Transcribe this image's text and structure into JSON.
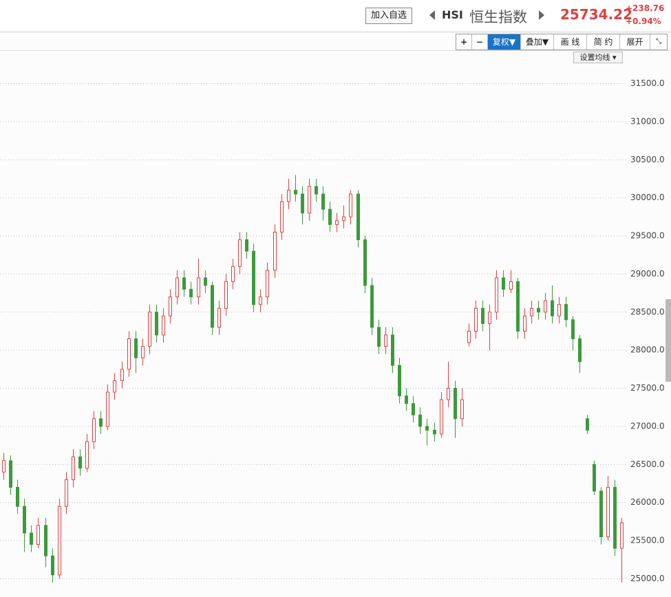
{
  "header": {
    "add_button": "加入自选",
    "symbol": "HSI",
    "name": "恒生指数",
    "price": "25734.22",
    "change": "+238.76",
    "change_pct": "+0.94%"
  },
  "toolbar": {
    "zoom_in": "+",
    "zoom_out": "−",
    "adjust": "复权▼",
    "overlay": "叠加▼",
    "draw": "画 线",
    "simple": "简 约",
    "expand": "展开",
    "ma_setting": "设置均线"
  },
  "chart_data": {
    "type": "candlestick",
    "up_color": "#e04040",
    "down_color": "#3c9a3c",
    "grid": true,
    "ylim": [
      24760,
      31920
    ],
    "yticks": [
      {
        "value": 25000,
        "label": "25000.0"
      },
      {
        "value": 25500,
        "label": "25500.0"
      },
      {
        "value": 26000,
        "label": "26000.0"
      },
      {
        "value": 26500,
        "label": "26500.0"
      },
      {
        "value": 27000,
        "label": "27000.0"
      },
      {
        "value": 27500,
        "label": "27500.0"
      },
      {
        "value": 28000,
        "label": "28000.0"
      },
      {
        "value": 28500,
        "label": "28500.0"
      },
      {
        "value": 29000,
        "label": "29000.0"
      },
      {
        "value": 29500,
        "label": "29500.0"
      },
      {
        "value": 30000,
        "label": "30000.0"
      },
      {
        "value": 30500,
        "label": "30500.0"
      },
      {
        "value": 31000,
        "label": "31000.0"
      },
      {
        "value": 31500,
        "label": "31500.0"
      }
    ],
    "open": [
      26400,
      26550,
      26200,
      25950,
      25600,
      25450,
      25700,
      25300,
      25050,
      25950,
      26300,
      26600,
      26450,
      26800,
      27100,
      27000,
      27450,
      27600,
      27750,
      28150,
      27900,
      28050,
      28500,
      28200,
      28450,
      28700,
      28950,
      28800,
      28700,
      28950,
      28850,
      28300,
      28550,
      28900,
      29100,
      29450,
      29300,
      28600,
      28700,
      29050,
      29550,
      29950,
      30100,
      30050,
      29800,
      30150,
      30050,
      29850,
      29650,
      29700,
      29750,
      30050,
      29450,
      28850,
      28300,
      28050,
      28200,
      27800,
      27400,
      27300,
      27150,
      27000,
      26950,
      26900,
      27350,
      27500,
      27100,
      28100,
      28250,
      28550,
      28350,
      28500,
      28950,
      28800,
      28900,
      28250,
      28450,
      28550,
      28500,
      28650,
      28450,
      28600,
      28400,
      28150,
      27100,
      26500,
      26150,
      25550,
      26200,
      25400
    ],
    "high": [
      26650,
      26620,
      26300,
      26050,
      25700,
      25800,
      25800,
      25400,
      26050,
      26400,
      26700,
      26700,
      26900,
      27200,
      27200,
      27550,
      27700,
      27850,
      28250,
      28250,
      28150,
      28600,
      28600,
      28550,
      28800,
      29050,
      29050,
      28900,
      29200,
      29050,
      28900,
      28650,
      29000,
      29200,
      29550,
      29550,
      29400,
      28800,
      29150,
      29650,
      30050,
      30250,
      30300,
      30150,
      30250,
      30250,
      30150,
      29950,
      29800,
      29900,
      30100,
      30100,
      29500,
      28950,
      28400,
      28300,
      28300,
      27900,
      27500,
      27400,
      27250,
      27100,
      27050,
      27450,
      27850,
      27600,
      27500,
      28350,
      28650,
      28650,
      28600,
      29050,
      29050,
      29050,
      28950,
      28550,
      28650,
      28650,
      28750,
      28850,
      28700,
      28700,
      28450,
      28200,
      27150,
      26550,
      26200,
      26350,
      26300,
      25800
    ],
    "low": [
      26300,
      26100,
      25850,
      25350,
      25350,
      25400,
      25150,
      24950,
      25000,
      25850,
      26200,
      26350,
      26400,
      26700,
      26900,
      26950,
      27350,
      27500,
      27650,
      27700,
      27800,
      27950,
      28100,
      28100,
      28350,
      28600,
      28700,
      28600,
      28600,
      28750,
      28200,
      28200,
      28450,
      28800,
      29000,
      29200,
      28500,
      28500,
      28600,
      28950,
      29450,
      29850,
      29950,
      29650,
      29700,
      29950,
      29700,
      29550,
      29550,
      29600,
      29650,
      29350,
      28750,
      28200,
      27950,
      27950,
      27700,
      27300,
      27200,
      27050,
      26900,
      26750,
      26800,
      26850,
      27250,
      26850,
      27000,
      28050,
      28150,
      28250,
      28000,
      28400,
      28700,
      28750,
      28150,
      28150,
      28350,
      28400,
      28400,
      28350,
      28350,
      28300,
      28000,
      27700,
      26900,
      26100,
      25450,
      25500,
      25300,
      24950
    ],
    "close": [
      26550,
      26200,
      25950,
      25600,
      25450,
      25700,
      25300,
      25050,
      25950,
      26300,
      26600,
      26450,
      26800,
      27100,
      27000,
      27450,
      27600,
      27750,
      28150,
      27900,
      28050,
      28500,
      28200,
      28450,
      28700,
      28950,
      28800,
      28700,
      28950,
      28850,
      28300,
      28550,
      28900,
      29100,
      29450,
      29300,
      28600,
      28700,
      29050,
      29550,
      29950,
      30100,
      30050,
      29800,
      30150,
      30050,
      29850,
      29650,
      29700,
      29750,
      30050,
      29450,
      28850,
      28300,
      28050,
      28200,
      27800,
      27400,
      27300,
      27150,
      27000,
      26950,
      26900,
      27350,
      27500,
      27100,
      27350,
      28250,
      28550,
      28350,
      28500,
      28950,
      28800,
      28900,
      28250,
      28450,
      28550,
      28500,
      28650,
      28450,
      28600,
      28400,
      28150,
      27850,
      26950,
      26150,
      25550,
      26200,
      25400,
      25734.22
    ]
  }
}
